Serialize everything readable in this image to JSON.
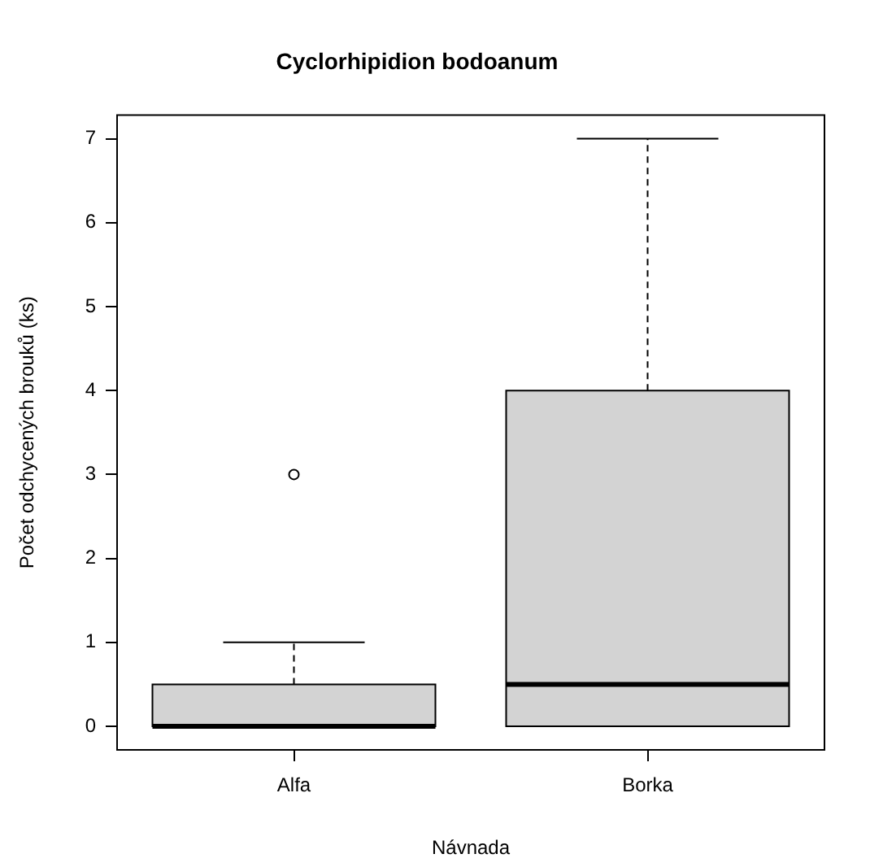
{
  "chart_data": {
    "type": "box",
    "title": "Cyclorhipidion bodoanum",
    "xlabel": "Návnada",
    "ylabel": "Počet odchycených brouků (ks)",
    "categories": [
      "Alfa",
      "Borka"
    ],
    "color": "#d3d3d3",
    "boxes": [
      {
        "low": 0,
        "q1": 0,
        "median": 0,
        "q3": 0.5,
        "high": 1,
        "outliers": [
          3
        ]
      },
      {
        "low": 0,
        "q1": 0,
        "median": 0.5,
        "q3": 4,
        "high": 7
      }
    ],
    "ylim": [
      -0.28,
      7.28
    ],
    "yticks": [
      0,
      1,
      2,
      3,
      4,
      5,
      6,
      7
    ],
    "grid": false
  }
}
